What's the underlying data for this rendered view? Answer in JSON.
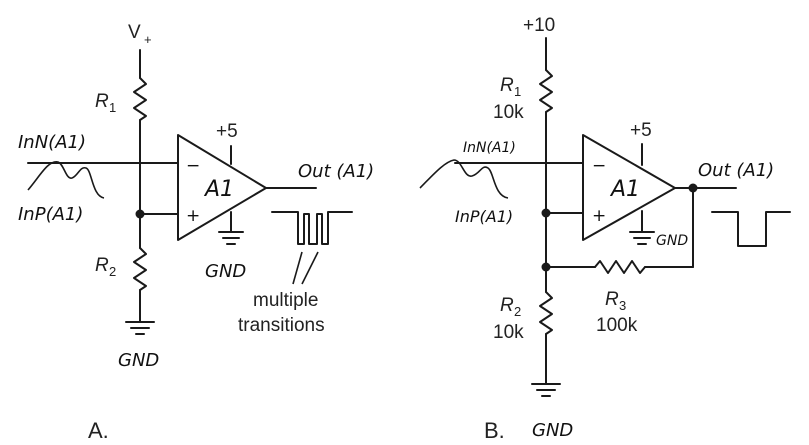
{
  "circuit_a": {
    "caption": "A.",
    "supply": "V",
    "supply_sub": "+",
    "r1": {
      "name": "R",
      "sub": "1"
    },
    "r2": {
      "name": "R",
      "sub": "2"
    },
    "opamp": {
      "name": "A1",
      "supply": "+5",
      "minus": "−",
      "plus": "+"
    },
    "in_neg": "InN(A1)",
    "in_pos": "InP(A1)",
    "out": "Out (A1)",
    "gnd_opamp": "GND",
    "gnd_bottom": "GND",
    "note_line1": "multiple",
    "note_line2": "transitions"
  },
  "circuit_b": {
    "caption": "B.",
    "supply": "+10",
    "r1": {
      "name": "R",
      "sub": "1",
      "value": "10k"
    },
    "r2": {
      "name": "R",
      "sub": "2",
      "value": "10k"
    },
    "r3": {
      "name": "R",
      "sub": "3",
      "value": "100k"
    },
    "opamp": {
      "name": "A1",
      "supply": "+5",
      "minus": "−",
      "plus": "+"
    },
    "in_neg": "InN(A1)",
    "in_pos": "InP(A1)",
    "out": "Out (A1)",
    "gnd_opamp": "GND",
    "gnd_bottom": "GND"
  }
}
